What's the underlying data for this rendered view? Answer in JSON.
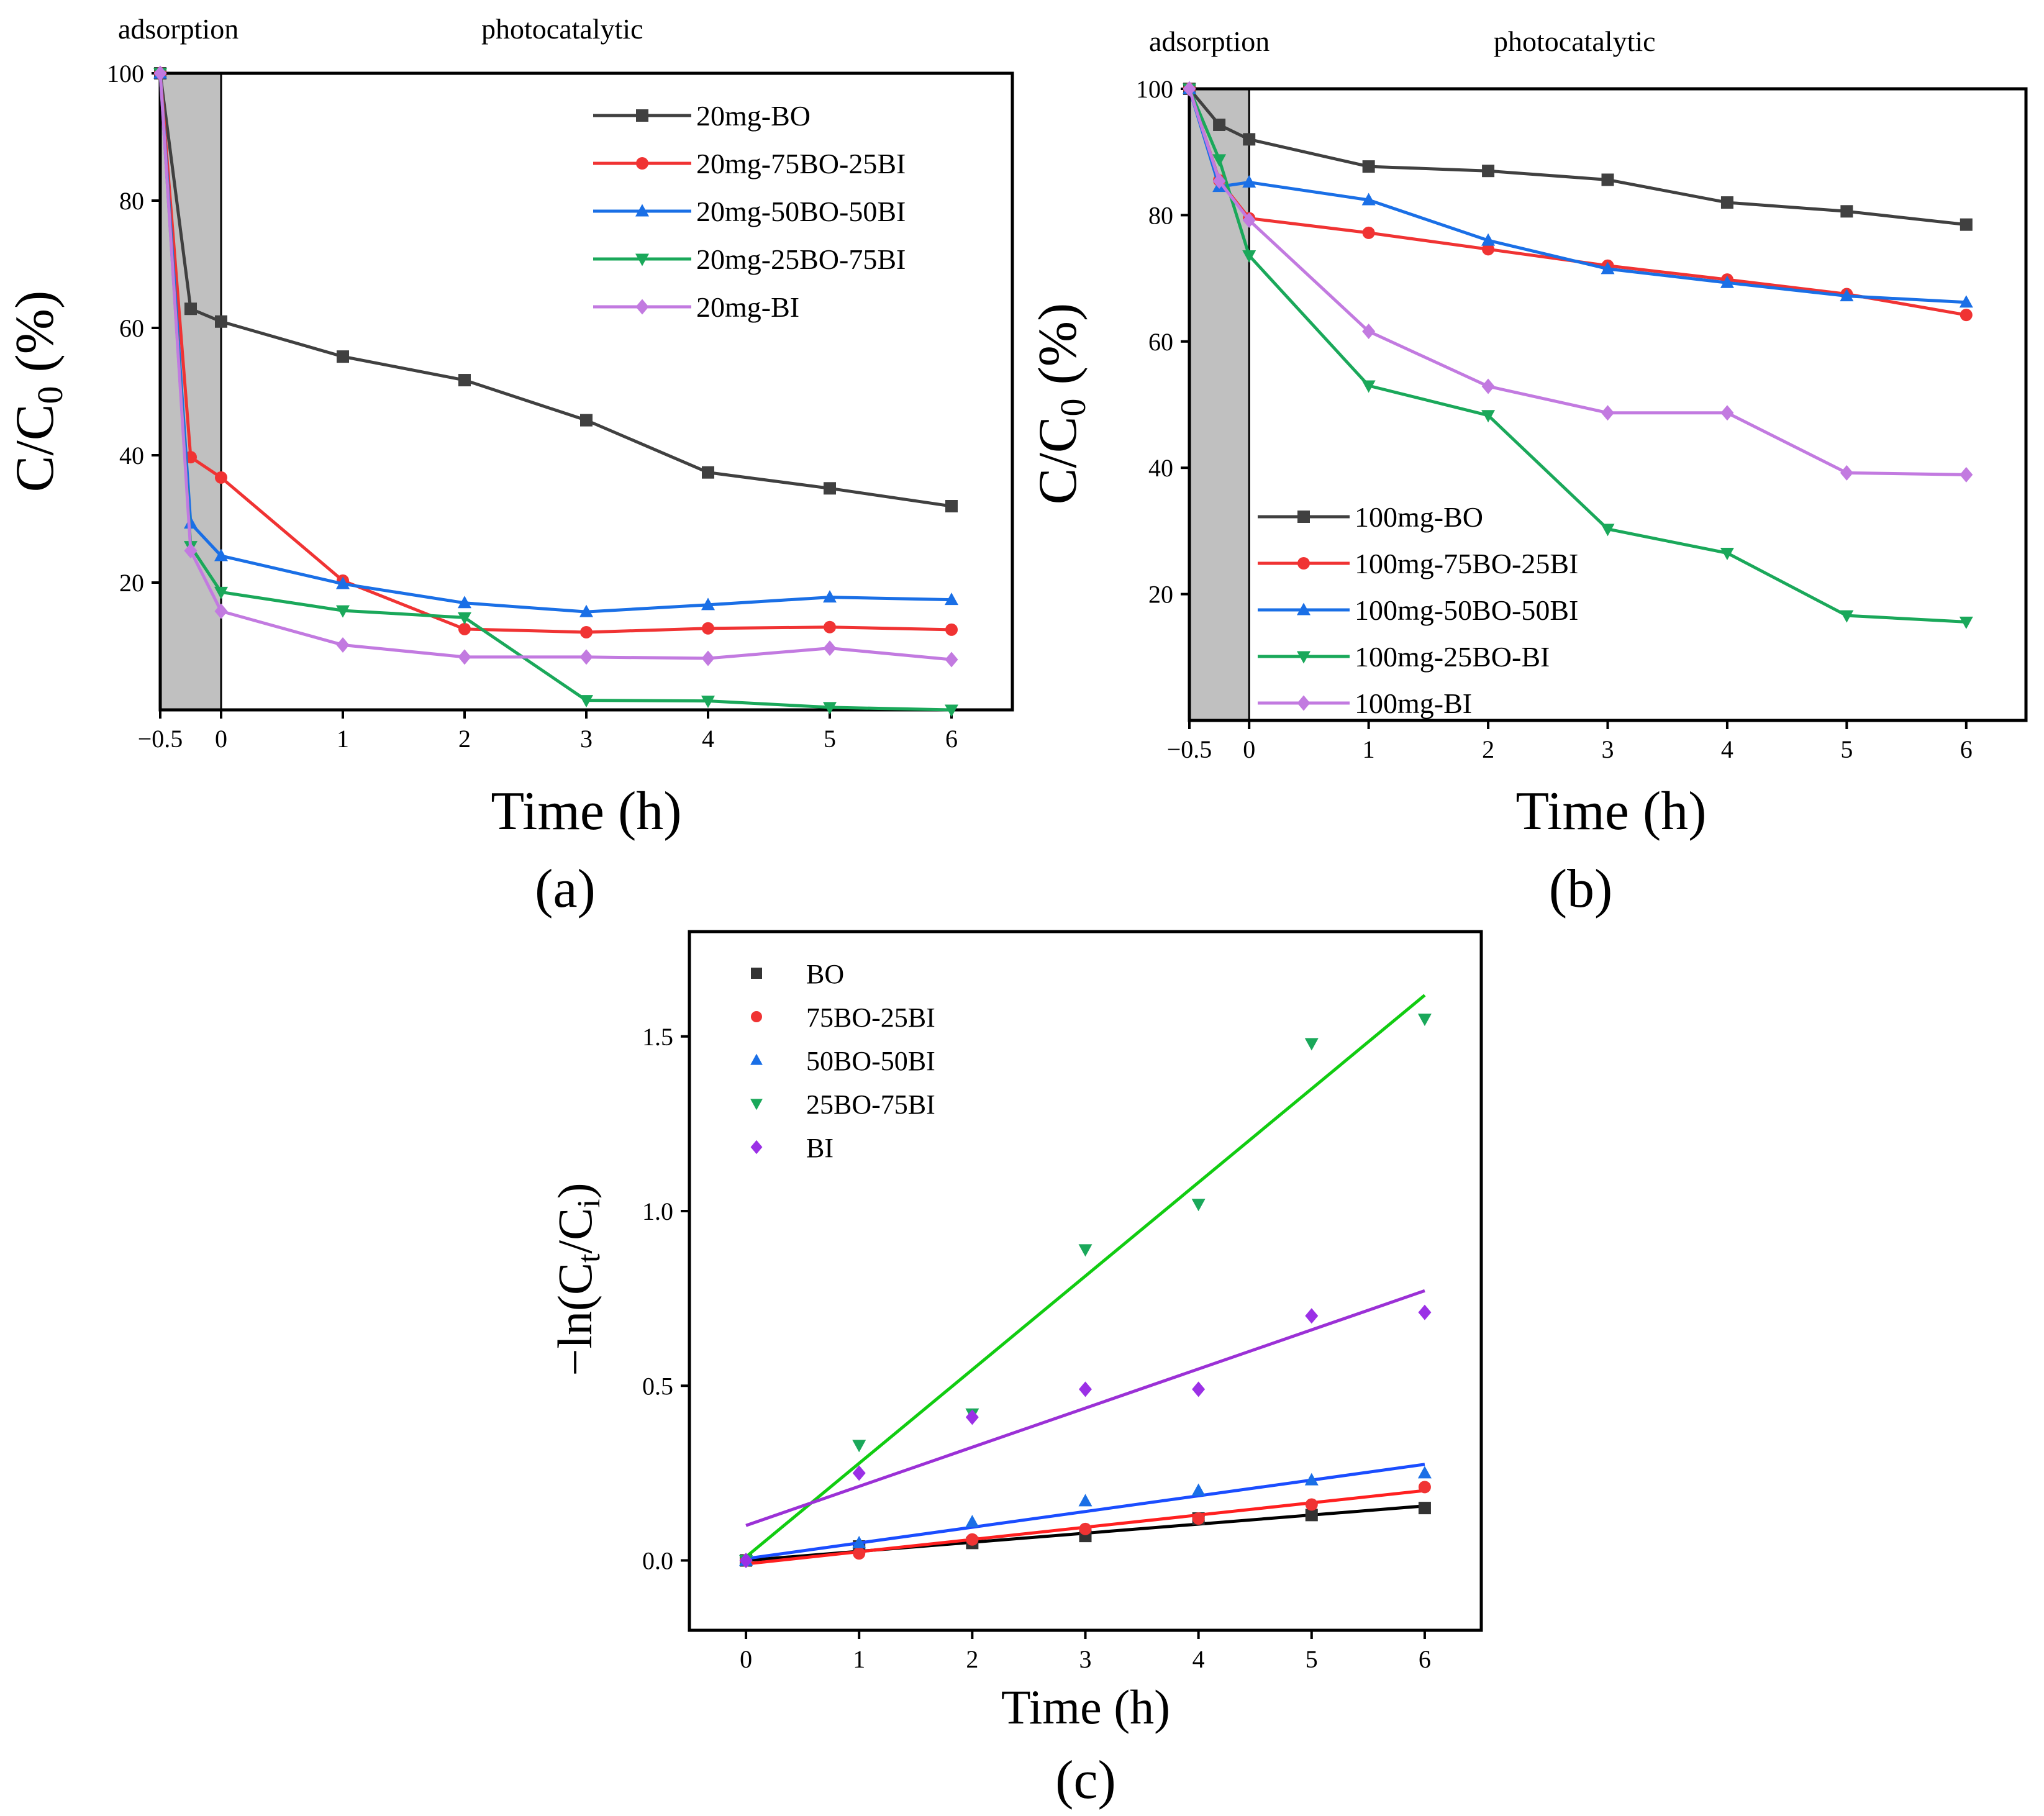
{
  "chart_data": [
    {
      "id": "a",
      "type": "line",
      "panel_label": "(a)",
      "xlabel": "Time (h)",
      "ylabel": "C/C",
      "ylabel_sub": "0",
      "ylabel_tail": " (%)",
      "xlim": [
        -0.5,
        6.5
      ],
      "ylim": [
        0,
        100
      ],
      "xticks": [
        -0.5,
        0,
        1,
        2,
        3,
        4,
        5,
        6
      ],
      "xtick_labels": [
        "−0.5",
        "0",
        "1",
        "2",
        "3",
        "4",
        "5",
        "6"
      ],
      "yticks": [
        20,
        40,
        60,
        80,
        100
      ],
      "ytick_labels": [
        "20",
        "40",
        "60",
        "80",
        "100"
      ],
      "region_labels": [
        "adsorption",
        "photocatalytic"
      ],
      "shaded_region": [
        -0.5,
        0
      ],
      "legend_position": "top-right",
      "x": [
        -0.5,
        -0.25,
        0,
        1,
        2,
        3,
        4,
        5,
        6
      ],
      "series": [
        {
          "name": "20mg-BO",
          "color": "#404040",
          "marker": "square",
          "values": [
            100,
            63,
            61,
            55.5,
            51.8,
            45.5,
            37.3,
            34.8,
            32
          ]
        },
        {
          "name": "20mg-75BO-25BI",
          "color": "#f03333",
          "marker": "circle",
          "values": [
            100,
            39.7,
            36.5,
            20.3,
            12.7,
            12.2,
            12.8,
            13,
            12.6
          ]
        },
        {
          "name": "20mg-50BO-50BI",
          "color": "#1a6fe6",
          "marker": "triangle-up",
          "values": [
            100,
            29.3,
            24.2,
            19.8,
            16.8,
            15.4,
            16.5,
            17.7,
            17.3
          ]
        },
        {
          "name": "20mg-25BO-75BI",
          "color": "#1aa85a",
          "marker": "triangle-down",
          "values": [
            100,
            25.7,
            18.5,
            15.6,
            14.5,
            1.5,
            1.4,
            0.4,
            0
          ]
        },
        {
          "name": "20mg-BI",
          "color": "#c27ae0",
          "marker": "diamond",
          "values": [
            100,
            25,
            15.5,
            10.2,
            8.3,
            8.3,
            8.1,
            9.7,
            7.9
          ]
        }
      ]
    },
    {
      "id": "b",
      "type": "line",
      "panel_label": "(b)",
      "xlabel": "Time (h)",
      "ylabel": "C/C",
      "ylabel_sub": "0",
      "ylabel_tail": " (%)",
      "xlim": [
        -0.5,
        6.5
      ],
      "ylim": [
        0,
        100
      ],
      "xticks": [
        -0.5,
        0,
        1,
        2,
        3,
        4,
        5,
        6
      ],
      "xtick_labels": [
        "−0.5",
        "0",
        "1",
        "2",
        "3",
        "4",
        "5",
        "6"
      ],
      "yticks": [
        20,
        40,
        60,
        80,
        100
      ],
      "ytick_labels": [
        "20",
        "40",
        "60",
        "80",
        "100"
      ],
      "region_labels": [
        "adsorption",
        "photocatalytic"
      ],
      "shaded_region": [
        -0.5,
        0
      ],
      "legend_position": "bottom-left",
      "x": [
        -0.5,
        -0.25,
        0,
        1,
        2,
        3,
        4,
        5,
        6
      ],
      "series": [
        {
          "name": "100mg-BO",
          "color": "#404040",
          "marker": "square",
          "values": [
            100,
            94.3,
            92,
            87.7,
            87,
            85.6,
            82,
            80.6,
            78.5
          ]
        },
        {
          "name": "100mg-75BO-25BI",
          "color": "#f03333",
          "marker": "circle",
          "values": [
            100,
            85.5,
            79.5,
            77.2,
            74.6,
            72,
            69.8,
            67.5,
            64.2
          ]
        },
        {
          "name": "100mg-50BO-50BI",
          "color": "#1a6fe6",
          "marker": "triangle-up",
          "values": [
            100,
            84.5,
            85.2,
            82.4,
            76,
            71.5,
            69.3,
            67.2,
            66.2
          ]
        },
        {
          "name": "100mg-25BO-BI",
          "color": "#1aa85a",
          "marker": "triangle-down",
          "values": [
            100,
            88.8,
            73.6,
            53,
            48.3,
            30.3,
            26.5,
            16.6,
            15.6
          ]
        },
        {
          "name": "100mg-BI",
          "color": "#c27ae0",
          "marker": "diamond",
          "values": [
            100,
            85.4,
            79.2,
            61.6,
            52.9,
            48.7,
            48.7,
            39.2,
            38.9
          ]
        }
      ]
    },
    {
      "id": "c",
      "type": "scatter",
      "panel_label": "(c)",
      "xlabel": "Time (h)",
      "ylabel_parts": [
        "−ln(C",
        "t",
        "/C",
        "i",
        ")"
      ],
      "xlim": [
        -0.5,
        6.5
      ],
      "ylim": [
        -0.2,
        1.8
      ],
      "xticks": [
        0,
        1,
        2,
        3,
        4,
        5,
        6
      ],
      "xtick_labels": [
        "0",
        "1",
        "2",
        "3",
        "4",
        "5",
        "6"
      ],
      "yticks": [
        0,
        0.5,
        1,
        1.5
      ],
      "ytick_labels": [
        "0.0",
        "0.5",
        "1.0",
        "1.5"
      ],
      "legend_position": "top-left",
      "x": [
        0,
        1,
        2,
        3,
        4,
        5,
        6
      ],
      "series": [
        {
          "name": "BO",
          "color": "#333333",
          "line_color": "#000000",
          "marker": "square",
          "values": [
            0,
            0.04,
            0.05,
            0.07,
            0.12,
            0.13,
            0.15
          ],
          "fit": [
            0,
            0.026
          ]
        },
        {
          "name": "75BO-25BI",
          "color": "#f03333",
          "line_color": "#ff2020",
          "marker": "circle",
          "values": [
            0,
            0.02,
            0.06,
            0.09,
            0.12,
            0.16,
            0.21
          ],
          "fit": [
            -0.01,
            0.035
          ]
        },
        {
          "name": "50BO-50BI",
          "color": "#1a6fe6",
          "line_color": "#1a4dff",
          "marker": "triangle-up",
          "values": [
            0,
            0.05,
            0.11,
            0.17,
            0.2,
            0.23,
            0.25
          ],
          "fit": [
            0.005,
            0.045
          ]
        },
        {
          "name": "25BO-75BI",
          "color": "#1aa85a",
          "line_color": "#11cc11",
          "marker": "triangle-down",
          "values": [
            0,
            0.33,
            0.42,
            0.89,
            1.02,
            1.48,
            1.55
          ],
          "fit": [
            0.01,
            0.268
          ]
        },
        {
          "name": "BI",
          "color": "#9b30e6",
          "line_color": "#9b30d6",
          "marker": "diamond",
          "values": [
            0,
            0.25,
            0.41,
            0.49,
            0.49,
            0.7,
            0.71
          ],
          "fit": [
            0.1,
            0.112
          ]
        }
      ]
    }
  ]
}
